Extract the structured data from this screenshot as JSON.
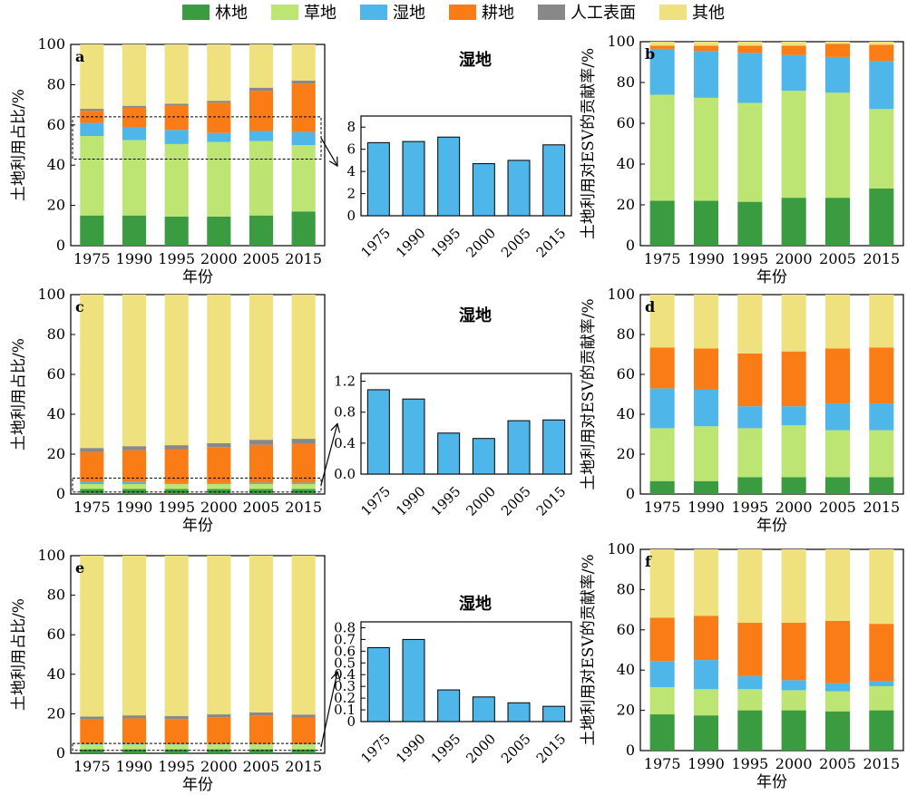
{
  "legend": [
    {
      "label": "林地",
      "color": "#3a9b40"
    },
    {
      "label": "草地",
      "color": "#bde574"
    },
    {
      "label": "湿地",
      "color": "#4fb6ea"
    },
    {
      "label": "耕地",
      "color": "#f97c16"
    },
    {
      "label": "人工表面",
      "color": "#888888"
    },
    {
      "label": "其他",
      "color": "#eee17e"
    }
  ],
  "chart_data": [
    {
      "id": "a",
      "type": "bar",
      "stacked": true,
      "panel_label": "a",
      "ylabel": "土地利用占比/%",
      "xlabel": "年份",
      "ylim": [
        0,
        100
      ],
      "yticks": [
        0,
        20,
        40,
        60,
        80,
        100
      ],
      "categories": [
        "1975",
        "1990",
        "1995",
        "2000",
        "2005",
        "2015"
      ],
      "series": [
        {
          "name": "林地",
          "values": [
            15,
            15,
            14.5,
            14.5,
            15,
            17
          ]
        },
        {
          "name": "草地",
          "values": [
            39.5,
            37.5,
            36,
            37,
            37,
            33
          ]
        },
        {
          "name": "湿地",
          "values": [
            6.5,
            6.5,
            7,
            4.5,
            5,
            6.5
          ]
        },
        {
          "name": "耕地",
          "values": [
            6,
            9.5,
            12,
            15,
            20,
            24
          ]
        },
        {
          "name": "人工表面",
          "values": [
            1,
            1,
            1,
            1,
            1.5,
            1.5
          ]
        },
        {
          "name": "其他",
          "values": [
            32,
            30.5,
            29.5,
            28,
            21.5,
            18
          ]
        }
      ],
      "highlight": [
        43,
        64
      ]
    },
    {
      "id": "a-inset",
      "type": "bar",
      "title": "湿地",
      "categories": [
        "1975",
        "1990",
        "1995",
        "2000",
        "2005",
        "2015"
      ],
      "values": [
        6.6,
        6.7,
        7.1,
        4.7,
        5.0,
        6.4
      ],
      "ylim": [
        0,
        9
      ],
      "yticks": [
        0,
        2,
        4,
        6,
        8
      ],
      "yticklabels": [
        "0",
        "2",
        "4",
        "6",
        "8"
      ]
    },
    {
      "id": "b",
      "type": "bar",
      "stacked": true,
      "panel_label": "b",
      "ylabel": "土地利用对ESV的贡献率/%",
      "xlabel": "年份",
      "ylim": [
        0,
        100
      ],
      "yticks": [
        0,
        20,
        40,
        60,
        80,
        100
      ],
      "categories": [
        "1975",
        "1990",
        "1995",
        "2000",
        "2005",
        "2015"
      ],
      "series": [
        {
          "name": "林地",
          "values": [
            22,
            22,
            21.5,
            23.5,
            23.5,
            28
          ]
        },
        {
          "name": "草地",
          "values": [
            52,
            50.5,
            48.5,
            52.5,
            51.5,
            39
          ]
        },
        {
          "name": "湿地",
          "values": [
            22.5,
            23,
            24.5,
            17.5,
            17.5,
            23.5
          ]
        },
        {
          "name": "耕地",
          "values": [
            1.5,
            2.5,
            3.5,
            4.5,
            6.5,
            8
          ]
        },
        {
          "name": "人工表面",
          "values": [
            0,
            0,
            0,
            0,
            0,
            0
          ]
        },
        {
          "name": "其他",
          "values": [
            2,
            2,
            2,
            2,
            1,
            1.5
          ]
        }
      ]
    },
    {
      "id": "c",
      "type": "bar",
      "stacked": true,
      "panel_label": "c",
      "ylabel": "土地利用占比/%",
      "xlabel": "年份",
      "ylim": [
        0,
        100
      ],
      "yticks": [
        0,
        20,
        40,
        60,
        80,
        100
      ],
      "categories": [
        "1975",
        "1990",
        "1995",
        "2000",
        "2005",
        "2015"
      ],
      "series": [
        {
          "name": "林地",
          "values": [
            2.5,
            2.5,
            2.5,
            2.5,
            2.5,
            2.5
          ]
        },
        {
          "name": "草地",
          "values": [
            2.5,
            2.5,
            2.5,
            2.5,
            2.5,
            2.5
          ]
        },
        {
          "name": "湿地",
          "values": [
            1.1,
            1.0,
            0.5,
            0.5,
            0.7,
            0.7
          ]
        },
        {
          "name": "耕地",
          "values": [
            15,
            16,
            17,
            18,
            19,
            19.5
          ]
        },
        {
          "name": "人工表面",
          "values": [
            2,
            2,
            2,
            2,
            2.5,
            2.5
          ]
        },
        {
          "name": "其他",
          "values": [
            76.9,
            76.0,
            75.5,
            74.5,
            72.8,
            72.3
          ]
        }
      ],
      "highlight": [
        1,
        8
      ]
    },
    {
      "id": "c-inset",
      "type": "bar",
      "title": "湿地",
      "categories": [
        "1975",
        "1990",
        "1995",
        "2000",
        "2005",
        "2015"
      ],
      "values": [
        1.09,
        0.97,
        0.53,
        0.46,
        0.69,
        0.7
      ],
      "ylim": [
        0,
        1.3
      ],
      "yticks": [
        0,
        0.4,
        0.8,
        1.2
      ],
      "yticklabels": [
        "0.0",
        "0.4",
        "0.8",
        "1.2"
      ]
    },
    {
      "id": "d",
      "type": "bar",
      "stacked": true,
      "panel_label": "d",
      "ylabel": "土地利用对ESV的贡献率/%",
      "xlabel": "年份",
      "ylim": [
        0,
        100
      ],
      "yticks": [
        0,
        20,
        40,
        60,
        80,
        100
      ],
      "categories": [
        "1975",
        "1990",
        "1995",
        "2000",
        "2005",
        "2015"
      ],
      "series": [
        {
          "name": "林地",
          "values": [
            6.5,
            6.5,
            8.5,
            8.5,
            8.5,
            8.5
          ]
        },
        {
          "name": "草地",
          "values": [
            26.5,
            27.5,
            24.5,
            26,
            23.5,
            23.5
          ]
        },
        {
          "name": "湿地",
          "values": [
            20,
            18.5,
            11,
            9.5,
            13.5,
            13.5
          ]
        },
        {
          "name": "耕地",
          "values": [
            20.5,
            20.5,
            26.5,
            27.5,
            27.5,
            28
          ]
        },
        {
          "name": "人工表面",
          "values": [
            0,
            0,
            0,
            0,
            0,
            0
          ]
        },
        {
          "name": "其他",
          "values": [
            26.5,
            27,
            29.5,
            28.5,
            27,
            26.5
          ]
        }
      ]
    },
    {
      "id": "e",
      "type": "bar",
      "stacked": true,
      "panel_label": "e",
      "ylabel": "土地利用占比/%",
      "xlabel": "年份",
      "ylim": [
        0,
        100
      ],
      "yticks": [
        0,
        20,
        40,
        60,
        80,
        100
      ],
      "categories": [
        "1975",
        "1990",
        "1995",
        "2000",
        "2005",
        "2015"
      ],
      "series": [
        {
          "name": "林地",
          "values": [
            2,
            2,
            2,
            2,
            2,
            2
          ]
        },
        {
          "name": "草地",
          "values": [
            2.5,
            2.5,
            2.5,
            2.5,
            2.5,
            2.5
          ]
        },
        {
          "name": "湿地",
          "values": [
            0.6,
            0.7,
            0.3,
            0.2,
            0.2,
            0.1
          ]
        },
        {
          "name": "耕地",
          "values": [
            12,
            12.5,
            12.5,
            13.5,
            14.5,
            13.5
          ]
        },
        {
          "name": "人工表面",
          "values": [
            1.5,
            1.5,
            1.5,
            1.5,
            1.5,
            1.5
          ]
        },
        {
          "name": "其他",
          "values": [
            81.4,
            80.8,
            81.2,
            80.3,
            79.3,
            80.4
          ]
        }
      ],
      "highlight": [
        1.5,
        5
      ]
    },
    {
      "id": "e-inset",
      "type": "bar",
      "title": "湿地",
      "categories": [
        "1975",
        "1990",
        "1995",
        "2000",
        "2005",
        "2015"
      ],
      "values": [
        0.63,
        0.7,
        0.27,
        0.21,
        0.16,
        0.13
      ],
      "ylim": [
        0,
        0.85
      ],
      "yticks": [
        0,
        0.1,
        0.2,
        0.3,
        0.4,
        0.5,
        0.6,
        0.7,
        0.8
      ],
      "yticklabels": [
        "0",
        "0.1",
        "0.2",
        "0.3",
        "0.4",
        "0.5",
        "0.6",
        "0.7",
        "0.8"
      ]
    },
    {
      "id": "f",
      "type": "bar",
      "stacked": true,
      "panel_label": "f",
      "ylabel": "土地利用对ESV的贡献率/%",
      "xlabel": "年份",
      "ylim": [
        0,
        100
      ],
      "yticks": [
        0,
        20,
        40,
        60,
        80,
        100
      ],
      "categories": [
        "1975",
        "1990",
        "1995",
        "2000",
        "2005",
        "2015"
      ],
      "series": [
        {
          "name": "林地",
          "values": [
            18,
            17.5,
            20,
            20,
            19.5,
            20
          ]
        },
        {
          "name": "草地",
          "values": [
            13.5,
            13,
            10.5,
            10,
            10,
            12
          ]
        },
        {
          "name": "湿地",
          "values": [
            13,
            14.5,
            6.5,
            5,
            4,
            2.5
          ]
        },
        {
          "name": "耕地",
          "values": [
            21.5,
            22,
            26.5,
            28.5,
            31,
            28.5
          ]
        },
        {
          "name": "人工表面",
          "values": [
            0,
            0,
            0,
            0,
            0,
            0
          ]
        },
        {
          "name": "其他",
          "values": [
            34,
            33,
            36.5,
            36.5,
            35.5,
            37
          ]
        }
      ]
    }
  ]
}
